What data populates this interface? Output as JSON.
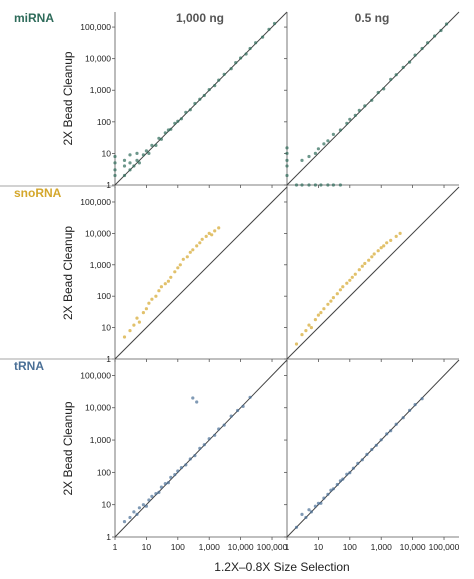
{
  "chart_data": {
    "type": "scatter",
    "xlabel": "1.2X–0.8X Size Selection",
    "ylabel": "2X Bead Cleanup",
    "columns": [
      "1,000 ng",
      "0.5 ng"
    ],
    "x_ticks": [
      {
        "value": 1,
        "label": "1"
      },
      {
        "value": 10,
        "label": "10"
      },
      {
        "value": 100,
        "label": "100"
      },
      {
        "value": 1000,
        "label": "1,000"
      },
      {
        "value": 10000,
        "label": "10,000"
      },
      {
        "value": 100000,
        "label": "100,000"
      }
    ],
    "y_ticks": [
      {
        "value": 1,
        "label": "1"
      },
      {
        "value": 10,
        "label": "10"
      },
      {
        "value": 100,
        "label": "100"
      },
      {
        "value": 1000,
        "label": "1,000"
      },
      {
        "value": 10000,
        "label": "10,000"
      },
      {
        "value": 100000,
        "label": "100,000"
      }
    ],
    "scale": "log",
    "range": [
      1,
      300000
    ],
    "reference_line": "y = x",
    "rows": [
      {
        "name": "miRNA",
        "color": "#2e6b5a",
        "panels": [
          [
            [
              1,
              2
            ],
            [
              1,
              3
            ],
            [
              1,
              5
            ],
            [
              1,
              8
            ],
            [
              2,
              2
            ],
            [
              2,
              4
            ],
            [
              2,
              6
            ],
            [
              3,
              3
            ],
            [
              3,
              5
            ],
            [
              3,
              9
            ],
            [
              4,
              4
            ],
            [
              5,
              6
            ],
            [
              5,
              10
            ],
            [
              6,
              5
            ],
            [
              8,
              9
            ],
            [
              10,
              12
            ],
            [
              12,
              10
            ],
            [
              15,
              18
            ],
            [
              20,
              18
            ],
            [
              25,
              30
            ],
            [
              30,
              28
            ],
            [
              40,
              45
            ],
            [
              50,
              55
            ],
            [
              60,
              58
            ],
            [
              80,
              90
            ],
            [
              100,
              105
            ],
            [
              130,
              125
            ],
            [
              180,
              200
            ],
            [
              250,
              240
            ],
            [
              350,
              380
            ],
            [
              500,
              520
            ],
            [
              700,
              680
            ],
            [
              1000,
              1050
            ],
            [
              1500,
              1400
            ],
            [
              2000,
              2100
            ],
            [
              3000,
              3200
            ],
            [
              5000,
              4800
            ],
            [
              7000,
              7500
            ],
            [
              10000,
              10500
            ],
            [
              15000,
              14000
            ],
            [
              20000,
              21000
            ],
            [
              30000,
              32000
            ],
            [
              50000,
              48000
            ],
            [
              80000,
              85000
            ],
            [
              120000,
              130000
            ]
          ],
          [
            [
              1,
              2
            ],
            [
              1,
              4
            ],
            [
              1,
              6
            ],
            [
              1,
              10
            ],
            [
              1,
              15
            ],
            [
              2,
              1
            ],
            [
              3,
              1
            ],
            [
              5,
              1
            ],
            [
              8,
              1
            ],
            [
              12,
              1
            ],
            [
              20,
              1
            ],
            [
              30,
              1
            ],
            [
              50,
              1
            ],
            [
              3,
              6
            ],
            [
              5,
              8
            ],
            [
              8,
              10
            ],
            [
              10,
              14
            ],
            [
              15,
              20
            ],
            [
              20,
              25
            ],
            [
              30,
              40
            ],
            [
              50,
              55
            ],
            [
              80,
              90
            ],
            [
              100,
              120
            ],
            [
              150,
              160
            ],
            [
              200,
              230
            ],
            [
              300,
              320
            ],
            [
              500,
              480
            ],
            [
              800,
              850
            ],
            [
              1200,
              1100
            ],
            [
              2000,
              2200
            ],
            [
              3000,
              3100
            ],
            [
              5000,
              5300
            ],
            [
              8000,
              7800
            ],
            [
              12000,
              13000
            ],
            [
              20000,
              21000
            ],
            [
              30000,
              32000
            ],
            [
              50000,
              52000
            ],
            [
              80000,
              78000
            ],
            [
              120000,
              125000
            ]
          ]
        ]
      },
      {
        "name": "snoRNA",
        "color": "#d4a72c",
        "panels": [
          [
            [
              2,
              5
            ],
            [
              3,
              8
            ],
            [
              4,
              12
            ],
            [
              5,
              20
            ],
            [
              6,
              15
            ],
            [
              8,
              30
            ],
            [
              10,
              40
            ],
            [
              12,
              60
            ],
            [
              15,
              80
            ],
            [
              20,
              100
            ],
            [
              25,
              150
            ],
            [
              30,
              200
            ],
            [
              40,
              250
            ],
            [
              50,
              300
            ],
            [
              60,
              400
            ],
            [
              80,
              600
            ],
            [
              100,
              800
            ],
            [
              120,
              1000
            ],
            [
              150,
              1500
            ],
            [
              200,
              1800
            ],
            [
              250,
              2500
            ],
            [
              300,
              3000
            ],
            [
              400,
              4000
            ],
            [
              500,
              5000
            ],
            [
              600,
              6500
            ],
            [
              800,
              8000
            ],
            [
              1000,
              10000
            ],
            [
              1200,
              9000
            ],
            [
              1500,
              12000
            ],
            [
              2000,
              15000
            ]
          ],
          [
            [
              2,
              3
            ],
            [
              3,
              6
            ],
            [
              4,
              8
            ],
            [
              5,
              12
            ],
            [
              6,
              10
            ],
            [
              8,
              18
            ],
            [
              10,
              25
            ],
            [
              12,
              30
            ],
            [
              15,
              40
            ],
            [
              20,
              55
            ],
            [
              25,
              70
            ],
            [
              30,
              90
            ],
            [
              40,
              120
            ],
            [
              50,
              160
            ],
            [
              60,
              200
            ],
            [
              80,
              260
            ],
            [
              100,
              320
            ],
            [
              120,
              400
            ],
            [
              150,
              500
            ],
            [
              200,
              700
            ],
            [
              250,
              900
            ],
            [
              300,
              1100
            ],
            [
              400,
              1400
            ],
            [
              500,
              1800
            ],
            [
              600,
              2200
            ],
            [
              800,
              2800
            ],
            [
              1000,
              3500
            ],
            [
              1200,
              4000
            ],
            [
              1500,
              5000
            ],
            [
              2000,
              6000
            ],
            [
              3000,
              8000
            ],
            [
              4000,
              10000
            ]
          ]
        ]
      },
      {
        "name": "tRNA",
        "color": "#4a6f96",
        "panels": [
          [
            [
              2,
              3
            ],
            [
              3,
              4
            ],
            [
              4,
              6
            ],
            [
              5,
              5
            ],
            [
              6,
              8
            ],
            [
              8,
              10
            ],
            [
              10,
              9
            ],
            [
              12,
              14
            ],
            [
              15,
              18
            ],
            [
              20,
              22
            ],
            [
              25,
              24
            ],
            [
              30,
              35
            ],
            [
              40,
              45
            ],
            [
              50,
              48
            ],
            [
              60,
              70
            ],
            [
              80,
              85
            ],
            [
              100,
              110
            ],
            [
              130,
              140
            ],
            [
              180,
              170
            ],
            [
              250,
              260
            ],
            [
              350,
              330
            ],
            [
              500,
              550
            ],
            [
              700,
              720
            ],
            [
              1000,
              1100
            ],
            [
              1500,
              1400
            ],
            [
              2000,
              2200
            ],
            [
              3000,
              2900
            ],
            [
              5000,
              5500
            ],
            [
              8000,
              8200
            ],
            [
              12000,
              11000
            ],
            [
              20000,
              21000
            ],
            [
              300,
              20000
            ],
            [
              400,
              15000
            ]
          ],
          [
            [
              2,
              2
            ],
            [
              3,
              5
            ],
            [
              4,
              4
            ],
            [
              5,
              7
            ],
            [
              6,
              6
            ],
            [
              8,
              9
            ],
            [
              10,
              11
            ],
            [
              12,
              11
            ],
            [
              15,
              16
            ],
            [
              20,
              21
            ],
            [
              25,
              28
            ],
            [
              30,
              31
            ],
            [
              40,
              42
            ],
            [
              50,
              55
            ],
            [
              60,
              62
            ],
            [
              80,
              88
            ],
            [
              100,
              98
            ],
            [
              130,
              135
            ],
            [
              180,
              190
            ],
            [
              250,
              245
            ],
            [
              350,
              360
            ],
            [
              500,
              510
            ],
            [
              700,
              690
            ],
            [
              1000,
              1020
            ],
            [
              1500,
              1550
            ],
            [
              2000,
              1950
            ],
            [
              3000,
              3100
            ],
            [
              5000,
              4900
            ],
            [
              8000,
              8300
            ],
            [
              12000,
              12500
            ],
            [
              20000,
              19000
            ]
          ]
        ]
      }
    ]
  }
}
